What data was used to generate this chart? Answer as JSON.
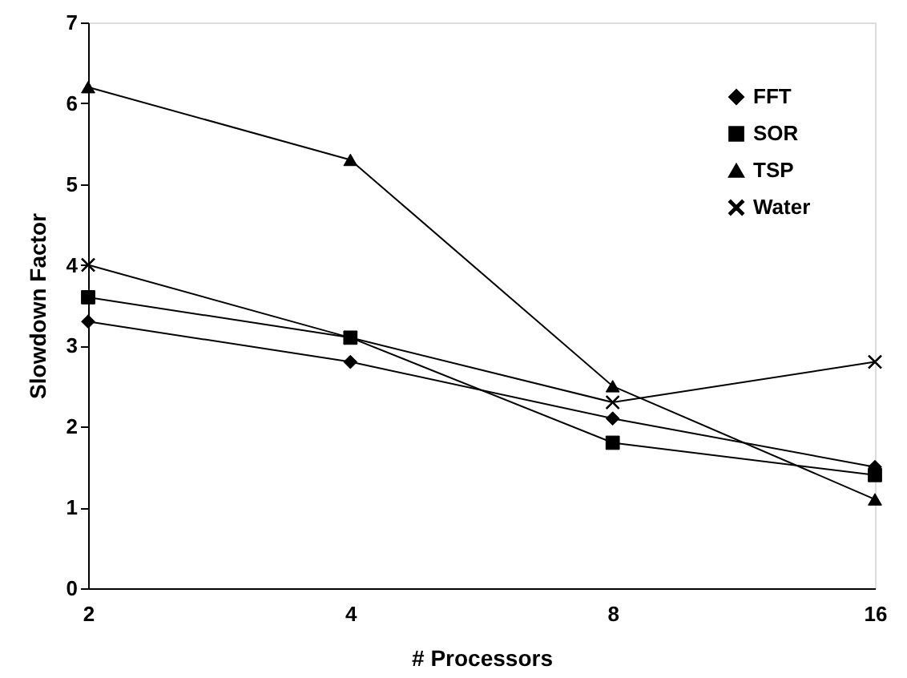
{
  "chart_data": {
    "type": "line",
    "xlabel": "# Processors",
    "ylabel": "Slowdown Factor",
    "categories": [
      "2",
      "4",
      "8",
      "16"
    ],
    "series": [
      {
        "name": "FFT",
        "color": "#000000",
        "marker": "diamond",
        "values": [
          3.3,
          2.8,
          2.1,
          1.5
        ]
      },
      {
        "name": "SOR",
        "color": "#000000",
        "marker": "square",
        "values": [
          3.6,
          3.1,
          1.8,
          1.4
        ]
      },
      {
        "name": "TSP",
        "color": "#000000",
        "marker": "triangle",
        "values": [
          6.2,
          5.3,
          2.5,
          1.1
        ]
      },
      {
        "name": "Water",
        "color": "#000000",
        "marker": "cross",
        "values": [
          4.0,
          3.1,
          2.3,
          2.8
        ]
      }
    ],
    "ylim": [
      0,
      7
    ],
    "yticks": [
      0,
      1,
      2,
      3,
      4,
      5,
      6,
      7
    ],
    "grid": false,
    "legend": "top right",
    "line_style": "solid"
  }
}
